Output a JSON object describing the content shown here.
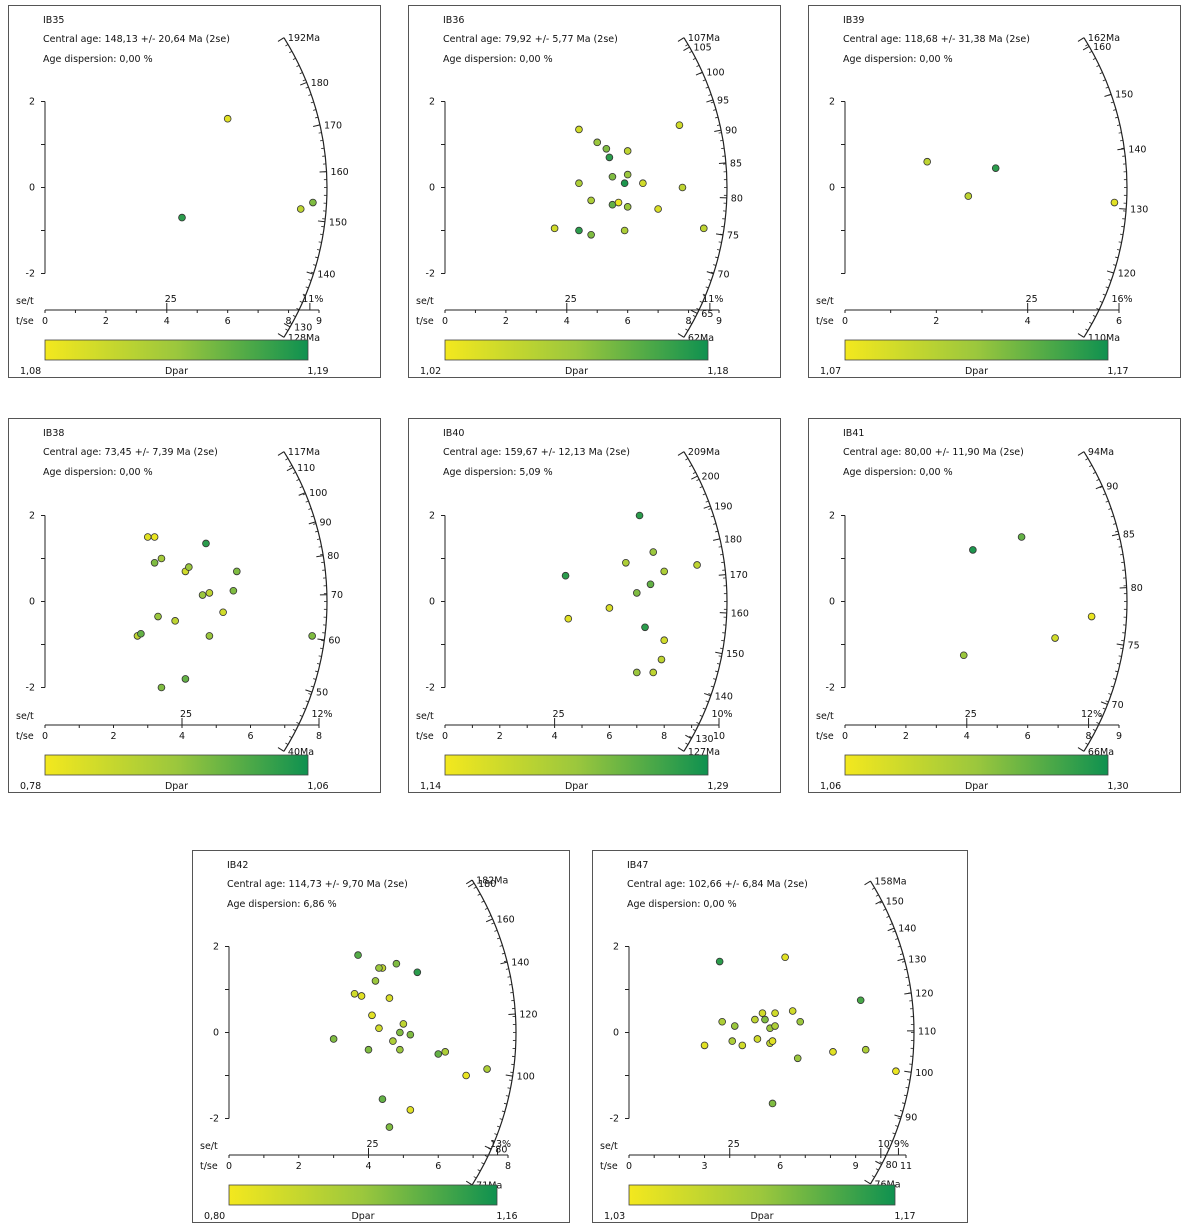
{
  "colorbar_label": "Dpar",
  "axis_labels": {
    "se_t": "se/t",
    "t_se": "t/se"
  },
  "colors": {
    "low": "#f3e81e",
    "mid": "#9bc73d",
    "high": "#0f9150"
  },
  "chart_data": [
    {
      "type": "scatter",
      "subtype": "radial",
      "sample": "IB35",
      "central_age_text": "Central age: 148,13 +/- 20,64 Ma (2se)",
      "dispersion_text": "Age dispersion: 0,00 %",
      "t_se_ticks": [
        "0",
        "2",
        "4",
        "6",
        "8",
        "9"
      ],
      "t_se_tick_values": [
        0,
        2,
        4,
        6,
        8,
        9
      ],
      "t_se_max": 9,
      "se_t_labels": [
        "25",
        "11%"
      ],
      "se_t_label_values": [
        4,
        8.7
      ],
      "y_ticks": [
        "2",
        "0",
        "-2"
      ],
      "y_tick_values": [
        2,
        0,
        -2
      ],
      "age_labels": [
        "192Ma",
        "180",
        "170",
        "160",
        "150",
        "140",
        "130",
        "128Ma"
      ],
      "age_label_values": [
        192,
        180,
        170,
        160,
        150,
        140,
        130,
        128
      ],
      "age_range": [
        128,
        192
      ],
      "dpar_min_label": "1,08",
      "dpar_max_label": "1,19",
      "points": [
        {
          "x": 6.0,
          "y": 1.6,
          "dpar": 0.1
        },
        {
          "x": 4.5,
          "y": -0.7,
          "dpar": 0.9
        },
        {
          "x": 8.4,
          "y": -0.5,
          "dpar": 0.3
        },
        {
          "x": 8.8,
          "y": -0.35,
          "dpar": 0.6
        }
      ]
    },
    {
      "type": "scatter",
      "subtype": "radial",
      "sample": "IB36",
      "central_age_text": "Central age: 79,92 +/- 5,77 Ma (2se)",
      "dispersion_text": "Age dispersion: 0,00 %",
      "t_se_ticks": [
        "0",
        "2",
        "4",
        "6",
        "8",
        "9"
      ],
      "t_se_tick_values": [
        0,
        2,
        4,
        6,
        8,
        9
      ],
      "t_se_max": 9,
      "se_t_labels": [
        "25",
        "11%"
      ],
      "se_t_label_values": [
        4,
        8.7
      ],
      "y_ticks": [
        "2",
        "0",
        "-2"
      ],
      "y_tick_values": [
        2,
        0,
        -2
      ],
      "age_labels": [
        "107Ma",
        "105",
        "100",
        "95",
        "90",
        "85",
        "80",
        "75",
        "70",
        "65",
        "62Ma"
      ],
      "age_label_values": [
        107,
        105,
        100,
        95,
        90,
        85,
        80,
        75,
        70,
        65,
        62
      ],
      "age_range": [
        62,
        107
      ],
      "dpar_min_label": "1,02",
      "dpar_max_label": "1,18",
      "points": [
        {
          "x": 4.4,
          "y": 1.35,
          "dpar": 0.2
        },
        {
          "x": 5.0,
          "y": 1.05,
          "dpar": 0.5
        },
        {
          "x": 5.3,
          "y": 0.9,
          "dpar": 0.6
        },
        {
          "x": 5.4,
          "y": 0.7,
          "dpar": 0.9
        },
        {
          "x": 6.0,
          "y": 0.85,
          "dpar": 0.3
        },
        {
          "x": 7.7,
          "y": 1.45,
          "dpar": 0.2
        },
        {
          "x": 5.5,
          "y": 0.25,
          "dpar": 0.6
        },
        {
          "x": 6.0,
          "y": 0.3,
          "dpar": 0.5
        },
        {
          "x": 4.4,
          "y": 0.1,
          "dpar": 0.4
        },
        {
          "x": 5.9,
          "y": 0.1,
          "dpar": 0.95
        },
        {
          "x": 6.5,
          "y": 0.1,
          "dpar": 0.2
        },
        {
          "x": 7.8,
          "y": 0.0,
          "dpar": 0.3
        },
        {
          "x": 4.8,
          "y": -0.3,
          "dpar": 0.4
        },
        {
          "x": 5.5,
          "y": -0.4,
          "dpar": 0.7
        },
        {
          "x": 5.7,
          "y": -0.35,
          "dpar": 0.05
        },
        {
          "x": 6.0,
          "y": -0.45,
          "dpar": 0.5
        },
        {
          "x": 7.0,
          "y": -0.5,
          "dpar": 0.15
        },
        {
          "x": 3.6,
          "y": -0.95,
          "dpar": 0.2
        },
        {
          "x": 4.4,
          "y": -1.0,
          "dpar": 0.9
        },
        {
          "x": 4.8,
          "y": -1.1,
          "dpar": 0.6
        },
        {
          "x": 5.9,
          "y": -1.0,
          "dpar": 0.4
        },
        {
          "x": 8.5,
          "y": -0.95,
          "dpar": 0.3
        }
      ]
    },
    {
      "type": "scatter",
      "subtype": "radial",
      "sample": "IB39",
      "central_age_text": "Central age: 118,68 +/- 31,38 Ma (2se)",
      "dispersion_text": "Age dispersion: 0,00 %",
      "t_se_ticks": [
        "0",
        "2",
        "4",
        "6"
      ],
      "t_se_tick_values": [
        0,
        2,
        4,
        6
      ],
      "t_se_max": 6,
      "se_t_labels": [
        "25",
        "16%"
      ],
      "se_t_label_values": [
        4,
        6
      ],
      "y_ticks": [
        "2",
        "0"
      ],
      "y_tick_values": [
        2,
        0
      ],
      "age_labels": [
        "162Ma",
        "160",
        "150",
        "140",
        "130",
        "120",
        "110Ma"
      ],
      "age_label_values": [
        162,
        160,
        150,
        140,
        130,
        120,
        110
      ],
      "age_range": [
        110,
        162
      ],
      "dpar_min_label": "1,07",
      "dpar_max_label": "1,17",
      "points": [
        {
          "x": 1.8,
          "y": 0.6,
          "dpar": 0.3
        },
        {
          "x": 3.3,
          "y": 0.45,
          "dpar": 0.9
        },
        {
          "x": 2.7,
          "y": -0.2,
          "dpar": 0.3
        },
        {
          "x": 5.9,
          "y": -0.35,
          "dpar": 0.1
        }
      ]
    },
    {
      "type": "scatter",
      "subtype": "radial",
      "sample": "IB38",
      "central_age_text": "Central age: 73,45 +/- 7,39 Ma (2se)",
      "dispersion_text": "Age dispersion: 0,00 %",
      "t_se_ticks": [
        "0",
        "2",
        "4",
        "6",
        "8"
      ],
      "t_se_tick_values": [
        0,
        2,
        4,
        6,
        8
      ],
      "t_se_max": 8,
      "se_t_labels": [
        "25",
        "12%"
      ],
      "se_t_label_values": [
        4,
        8
      ],
      "y_ticks": [
        "2",
        "0",
        "-2"
      ],
      "y_tick_values": [
        2,
        0,
        -2
      ],
      "age_labels": [
        "117Ma",
        "110",
        "100",
        "90",
        "80",
        "70",
        "60",
        "50",
        "40Ma"
      ],
      "age_label_values": [
        117,
        110,
        100,
        90,
        80,
        70,
        60,
        50,
        40
      ],
      "age_range": [
        40,
        117
      ],
      "dpar_min_label": "0,78",
      "dpar_max_label": "1,06",
      "points": [
        {
          "x": 3.0,
          "y": 1.5,
          "dpar": 0.1
        },
        {
          "x": 3.2,
          "y": 1.5,
          "dpar": 0.05
        },
        {
          "x": 4.7,
          "y": 1.35,
          "dpar": 0.9
        },
        {
          "x": 3.2,
          "y": 0.9,
          "dpar": 0.6
        },
        {
          "x": 3.4,
          "y": 1.0,
          "dpar": 0.45
        },
        {
          "x": 4.1,
          "y": 0.7,
          "dpar": 0.2
        },
        {
          "x": 4.2,
          "y": 0.8,
          "dpar": 0.5
        },
        {
          "x": 5.6,
          "y": 0.7,
          "dpar": 0.6
        },
        {
          "x": 4.6,
          "y": 0.15,
          "dpar": 0.5
        },
        {
          "x": 4.8,
          "y": 0.2,
          "dpar": 0.3
        },
        {
          "x": 5.5,
          "y": 0.25,
          "dpar": 0.6
        },
        {
          "x": 5.2,
          "y": -0.25,
          "dpar": 0.2
        },
        {
          "x": 3.3,
          "y": -0.35,
          "dpar": 0.5
        },
        {
          "x": 3.8,
          "y": -0.45,
          "dpar": 0.3
        },
        {
          "x": 2.7,
          "y": -0.8,
          "dpar": 0.3
        },
        {
          "x": 2.8,
          "y": -0.75,
          "dpar": 0.7
        },
        {
          "x": 4.8,
          "y": -0.8,
          "dpar": 0.5
        },
        {
          "x": 7.8,
          "y": -0.8,
          "dpar": 0.6
        },
        {
          "x": 4.1,
          "y": -1.8,
          "dpar": 0.7
        },
        {
          "x": 3.4,
          "y": -2.0,
          "dpar": 0.6
        }
      ]
    },
    {
      "type": "scatter",
      "subtype": "radial",
      "sample": "IB40",
      "central_age_text": "Central age: 159,67 +/- 12,13 Ma (2se)",
      "dispersion_text": "Age dispersion: 5,09 %",
      "t_se_ticks": [
        "0",
        "2",
        "4",
        "6",
        "8",
        "10"
      ],
      "t_se_tick_values": [
        0,
        2,
        4,
        6,
        8,
        10
      ],
      "t_se_max": 10,
      "se_t_labels": [
        "25",
        "10%"
      ],
      "se_t_label_values": [
        4,
        10
      ],
      "y_ticks": [
        "2",
        "0",
        "-2"
      ],
      "y_tick_values": [
        2,
        0,
        -2
      ],
      "age_labels": [
        "209Ma",
        "200",
        "190",
        "180",
        "170",
        "160",
        "150",
        "140",
        "130",
        "127Ma"
      ],
      "age_label_values": [
        209,
        200,
        190,
        180,
        170,
        160,
        150,
        140,
        130,
        127
      ],
      "age_range": [
        127,
        209
      ],
      "dpar_min_label": "1,14",
      "dpar_max_label": "1,29",
      "points": [
        {
          "x": 7.1,
          "y": 2.0,
          "dpar": 0.9
        },
        {
          "x": 7.6,
          "y": 1.15,
          "dpar": 0.5
        },
        {
          "x": 6.6,
          "y": 0.9,
          "dpar": 0.4
        },
        {
          "x": 9.2,
          "y": 0.85,
          "dpar": 0.3
        },
        {
          "x": 8.0,
          "y": 0.7,
          "dpar": 0.4
        },
        {
          "x": 7.5,
          "y": 0.4,
          "dpar": 0.7
        },
        {
          "x": 7.0,
          "y": 0.2,
          "dpar": 0.6
        },
        {
          "x": 4.4,
          "y": 0.6,
          "dpar": 0.9
        },
        {
          "x": 6.0,
          "y": -0.15,
          "dpar": 0.15
        },
        {
          "x": 4.5,
          "y": -0.4,
          "dpar": 0.1
        },
        {
          "x": 7.3,
          "y": -0.6,
          "dpar": 0.9
        },
        {
          "x": 8.0,
          "y": -0.9,
          "dpar": 0.2
        },
        {
          "x": 7.9,
          "y": -1.35,
          "dpar": 0.3
        },
        {
          "x": 7.0,
          "y": -1.65,
          "dpar": 0.5
        },
        {
          "x": 7.6,
          "y": -1.65,
          "dpar": 0.3
        }
      ]
    },
    {
      "type": "scatter",
      "subtype": "radial",
      "sample": "IB41",
      "central_age_text": "Central age: 80,00 +/- 11,90 Ma (2se)",
      "dispersion_text": "Age dispersion: 0,00 %",
      "t_se_ticks": [
        "0",
        "2",
        "4",
        "6",
        "8",
        "9"
      ],
      "t_se_tick_values": [
        0,
        2,
        4,
        6,
        8,
        9
      ],
      "t_se_max": 9,
      "se_t_labels": [
        "25",
        "12%"
      ],
      "se_t_label_values": [
        4,
        8
      ],
      "y_ticks": [
        "2",
        "0",
        "-2"
      ],
      "y_tick_values": [
        2,
        0,
        -2
      ],
      "age_labels": [
        "94Ma",
        "90",
        "85",
        "80",
        "75",
        "70",
        "66Ma"
      ],
      "age_label_values": [
        94,
        90,
        85,
        80,
        75,
        70,
        66
      ],
      "age_range": [
        66,
        94
      ],
      "dpar_min_label": "1,06",
      "dpar_max_label": "1,30",
      "points": [
        {
          "x": 4.2,
          "y": 1.2,
          "dpar": 0.95
        },
        {
          "x": 5.8,
          "y": 1.5,
          "dpar": 0.7
        },
        {
          "x": 3.9,
          "y": -1.25,
          "dpar": 0.5
        },
        {
          "x": 6.9,
          "y": -0.85,
          "dpar": 0.2
        },
        {
          "x": 8.1,
          "y": -0.35,
          "dpar": 0.05
        }
      ]
    },
    {
      "type": "scatter",
      "subtype": "radial",
      "sample": "IB42",
      "central_age_text": "Central age: 114,73 +/- 9,70 Ma (2se)",
      "dispersion_text": "Age dispersion: 6,86 %",
      "t_se_ticks": [
        "0",
        "2",
        "4",
        "6",
        "8"
      ],
      "t_se_tick_values": [
        0,
        2,
        4,
        6,
        8
      ],
      "t_se_max": 8,
      "se_t_labels": [
        "25",
        "13%"
      ],
      "se_t_label_values": [
        4,
        7.7
      ],
      "y_ticks": [
        "2",
        "0",
        "-2"
      ],
      "y_tick_values": [
        2,
        0,
        -2
      ],
      "age_labels": [
        "182Ma",
        "180",
        "160",
        "140",
        "120",
        "100",
        "80",
        "71Ma"
      ],
      "age_label_values": [
        182,
        180,
        160,
        140,
        120,
        100,
        80,
        71
      ],
      "age_range": [
        71,
        182
      ],
      "dpar_min_label": "0,80",
      "dpar_max_label": "1,16",
      "points": [
        {
          "x": 3.7,
          "y": 1.8,
          "dpar": 0.75
        },
        {
          "x": 4.8,
          "y": 1.6,
          "dpar": 0.6
        },
        {
          "x": 5.4,
          "y": 1.4,
          "dpar": 0.9
        },
        {
          "x": 4.4,
          "y": 1.5,
          "dpar": 0.3
        },
        {
          "x": 4.3,
          "y": 1.5,
          "dpar": 0.5
        },
        {
          "x": 4.2,
          "y": 1.2,
          "dpar": 0.5
        },
        {
          "x": 3.6,
          "y": 0.9,
          "dpar": 0.2
        },
        {
          "x": 3.8,
          "y": 0.85,
          "dpar": 0.1
        },
        {
          "x": 4.6,
          "y": 0.8,
          "dpar": 0.15
        },
        {
          "x": 4.1,
          "y": 0.4,
          "dpar": 0.1
        },
        {
          "x": 5.0,
          "y": 0.2,
          "dpar": 0.3
        },
        {
          "x": 4.3,
          "y": 0.1,
          "dpar": 0.2
        },
        {
          "x": 4.9,
          "y": 0.0,
          "dpar": 0.6
        },
        {
          "x": 5.2,
          "y": -0.05,
          "dpar": 0.6
        },
        {
          "x": 4.7,
          "y": -0.2,
          "dpar": 0.4
        },
        {
          "x": 3.0,
          "y": -0.15,
          "dpar": 0.6
        },
        {
          "x": 4.0,
          "y": -0.4,
          "dpar": 0.6
        },
        {
          "x": 4.9,
          "y": -0.4,
          "dpar": 0.5
        },
        {
          "x": 6.0,
          "y": -0.5,
          "dpar": 0.7
        },
        {
          "x": 6.2,
          "y": -0.45,
          "dpar": 0.4
        },
        {
          "x": 6.8,
          "y": -1.0,
          "dpar": 0.05
        },
        {
          "x": 7.4,
          "y": -0.85,
          "dpar": 0.4
        },
        {
          "x": 4.4,
          "y": -1.55,
          "dpar": 0.7
        },
        {
          "x": 5.2,
          "y": -1.8,
          "dpar": 0.1
        },
        {
          "x": 4.6,
          "y": -2.2,
          "dpar": 0.6
        }
      ]
    },
    {
      "type": "scatter",
      "subtype": "radial",
      "sample": "IB47",
      "central_age_text": "Central age: 102,66 +/- 6,84 Ma (2se)",
      "dispersion_text": "Age dispersion: 0,00 %",
      "t_se_ticks": [
        "0",
        "3",
        "6",
        "9",
        "11"
      ],
      "t_se_tick_values": [
        0,
        3,
        6,
        9,
        11
      ],
      "t_se_max": 11,
      "se_t_labels": [
        "25",
        "10",
        "9%"
      ],
      "se_t_label_values": [
        4,
        10,
        10.7
      ],
      "y_ticks": [
        "2",
        "0",
        "-2"
      ],
      "y_tick_values": [
        2,
        0,
        -2
      ],
      "age_labels": [
        "158Ma",
        "150",
        "140",
        "130",
        "120",
        "110",
        "100",
        "90",
        "80",
        "76Ma"
      ],
      "age_label_values": [
        158,
        150,
        140,
        130,
        120,
        110,
        100,
        90,
        80,
        76
      ],
      "age_range": [
        76,
        158
      ],
      "dpar_min_label": "1,03",
      "dpar_max_label": "1,17",
      "points": [
        {
          "x": 3.6,
          "y": 1.65,
          "dpar": 0.9
        },
        {
          "x": 6.2,
          "y": 1.75,
          "dpar": 0.1
        },
        {
          "x": 9.2,
          "y": 0.75,
          "dpar": 0.8
        },
        {
          "x": 3.7,
          "y": 0.25,
          "dpar": 0.4
        },
        {
          "x": 4.2,
          "y": 0.15,
          "dpar": 0.5
        },
        {
          "x": 5.0,
          "y": 0.3,
          "dpar": 0.3
        },
        {
          "x": 5.3,
          "y": 0.45,
          "dpar": 0.2
        },
        {
          "x": 5.8,
          "y": 0.45,
          "dpar": 0.2
        },
        {
          "x": 6.5,
          "y": 0.5,
          "dpar": 0.2
        },
        {
          "x": 6.8,
          "y": 0.25,
          "dpar": 0.5
        },
        {
          "x": 5.4,
          "y": 0.3,
          "dpar": 0.6
        },
        {
          "x": 5.6,
          "y": 0.1,
          "dpar": 0.5
        },
        {
          "x": 5.8,
          "y": 0.15,
          "dpar": 0.4
        },
        {
          "x": 3.0,
          "y": -0.3,
          "dpar": 0.1
        },
        {
          "x": 4.1,
          "y": -0.2,
          "dpar": 0.4
        },
        {
          "x": 4.5,
          "y": -0.3,
          "dpar": 0.2
        },
        {
          "x": 5.1,
          "y": -0.15,
          "dpar": 0.2
        },
        {
          "x": 5.6,
          "y": -0.25,
          "dpar": 0.3
        },
        {
          "x": 5.7,
          "y": -0.2,
          "dpar": 0.1
        },
        {
          "x": 6.7,
          "y": -0.6,
          "dpar": 0.5
        },
        {
          "x": 8.1,
          "y": -0.45,
          "dpar": 0.1
        },
        {
          "x": 9.4,
          "y": -0.4,
          "dpar": 0.4
        },
        {
          "x": 10.6,
          "y": -0.9,
          "dpar": 0.05
        },
        {
          "x": 5.7,
          "y": -1.65,
          "dpar": 0.6
        }
      ]
    }
  ]
}
